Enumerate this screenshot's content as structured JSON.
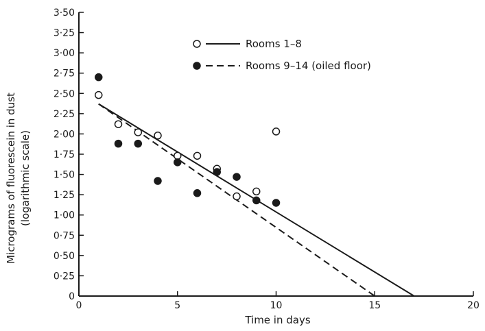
{
  "chart_data": {
    "type": "scatter",
    "title": "",
    "xlabel": "Time in days",
    "ylabel": "Micrograms of fluorescein in dust",
    "ylabel_sub": "(logarithmic scale)",
    "xlim": [
      0,
      20
    ],
    "ylim": [
      0,
      3.5
    ],
    "x_ticks": [
      0,
      5,
      10,
      15,
      20
    ],
    "y_ticks": [
      0,
      0.25,
      0.5,
      0.75,
      1.0,
      1.25,
      1.5,
      1.75,
      2.0,
      2.25,
      2.5,
      2.75,
      3.0,
      3.25,
      3.5
    ],
    "x_tick_labels": [
      "0",
      "5",
      "10",
      "15",
      "20"
    ],
    "y_tick_labels": [
      "0",
      "0·25",
      "0·50",
      "0·75",
      "1·00",
      "1·25",
      "1·50",
      "1·75",
      "2·00",
      "2·25",
      "2·50",
      "2·75",
      "3·00",
      "3·25",
      "3·50"
    ],
    "grid": false,
    "legend_position": "top-right",
    "series": [
      {
        "name": "Rooms 1–8",
        "marker": "open-circle",
        "line_style": "solid",
        "x": [
          1,
          2,
          3,
          4,
          5,
          6,
          7,
          8,
          9,
          10
        ],
        "y": [
          2.48,
          2.12,
          2.02,
          1.98,
          1.73,
          1.73,
          1.57,
          1.23,
          1.29,
          2.03
        ],
        "fit_line": {
          "x": [
            1,
            17
          ],
          "y": [
            2.37,
            0
          ]
        }
      },
      {
        "name": "Rooms 9–14 (oiled floor)",
        "marker": "filled-circle",
        "line_style": "dashed",
        "x": [
          1,
          2,
          3,
          4,
          5,
          6,
          7,
          8,
          9,
          10
        ],
        "y": [
          2.7,
          1.88,
          1.88,
          1.42,
          1.65,
          1.27,
          1.53,
          1.47,
          1.18,
          1.15
        ],
        "fit_line": {
          "x": [
            1,
            15
          ],
          "y": [
            2.37,
            0
          ]
        }
      }
    ]
  }
}
